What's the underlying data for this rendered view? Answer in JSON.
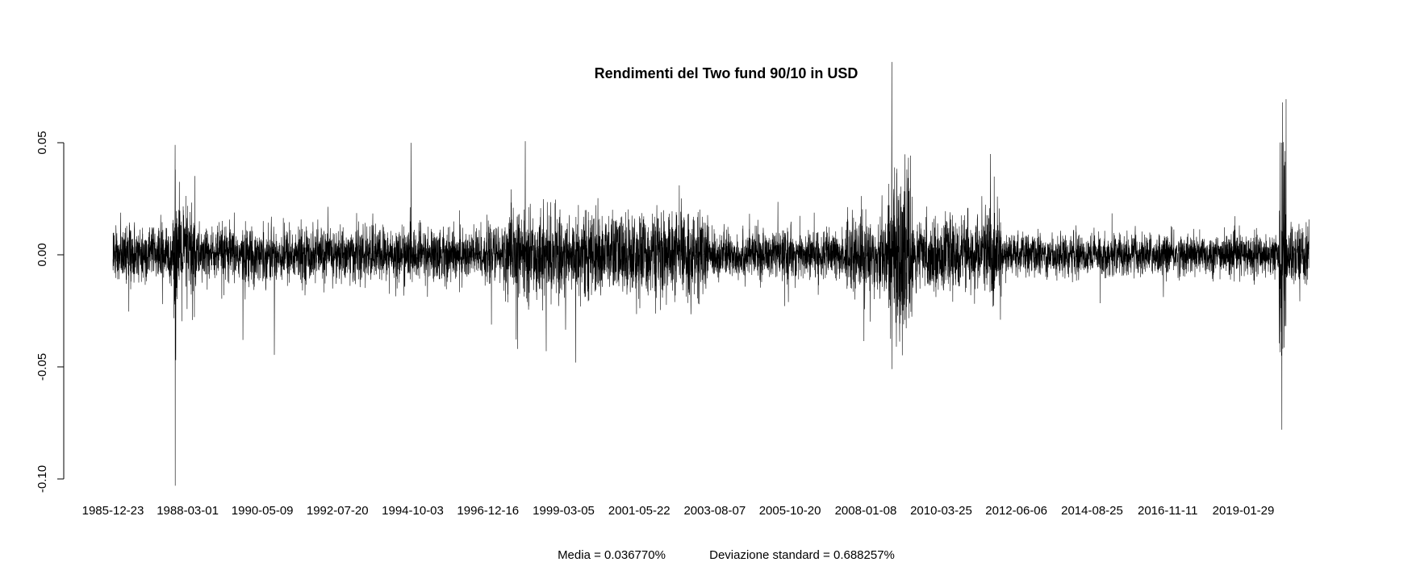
{
  "chart_data": {
    "type": "line",
    "title": "Rendimenti del Two fund 90/10 in USD",
    "xlabel": "",
    "ylabel": "",
    "x_range": [
      "1985-12-23",
      "2020-12-31"
    ],
    "ylim": [
      -0.1,
      0.086
    ],
    "y_ticks": [
      {
        "value": 0.05,
        "label": "0.05"
      },
      {
        "value": 0.0,
        "label": "0.00"
      },
      {
        "value": -0.05,
        "label": "-0.05"
      },
      {
        "value": -0.1,
        "label": "-0.10"
      }
    ],
    "x_ticks": [
      {
        "date": "1985-12-23",
        "label": "1985-12-23"
      },
      {
        "date": "1988-03-01",
        "label": "1988-03-01"
      },
      {
        "date": "1990-05-09",
        "label": "1990-05-09"
      },
      {
        "date": "1992-07-20",
        "label": "1992-07-20"
      },
      {
        "date": "1994-10-03",
        "label": "1994-10-03"
      },
      {
        "date": "1996-12-16",
        "label": "1996-12-16"
      },
      {
        "date": "1999-03-05",
        "label": "1999-03-05"
      },
      {
        "date": "2001-05-22",
        "label": "2001-05-22"
      },
      {
        "date": "2003-08-07",
        "label": "2003-08-07"
      },
      {
        "date": "2005-10-20",
        "label": "2005-10-20"
      },
      {
        "date": "2008-01-08",
        "label": "2008-01-08"
      },
      {
        "date": "2010-03-25",
        "label": "2010-03-25"
      },
      {
        "date": "2012-06-06",
        "label": "2012-06-06"
      },
      {
        "date": "2014-08-25",
        "label": "2014-08-25"
      },
      {
        "date": "2016-11-11",
        "label": "2016-11-11"
      },
      {
        "date": "2019-01-29",
        "label": "2019-01-29"
      }
    ],
    "series": [
      {
        "color": "#000000",
        "notable_points": [
          {
            "x": "1987-10-19",
            "y": 0.049
          },
          {
            "x": "1987-10-20",
            "y": -0.103
          },
          {
            "x": "1987-10-21",
            "y": 0.038
          },
          {
            "x": "1987-10-26",
            "y": -0.047
          },
          {
            "x": "1989-10-13",
            "y": -0.038
          },
          {
            "x": "1997-10-27",
            "y": -0.042
          },
          {
            "x": "1998-08-31",
            "y": -0.043
          },
          {
            "x": "2002-07-24",
            "y": 0.031
          },
          {
            "x": "2008-10-13",
            "y": 0.086
          },
          {
            "x": "2008-10-15",
            "y": -0.051
          },
          {
            "x": "2008-12-01",
            "y": -0.041
          },
          {
            "x": "2020-03-13",
            "y": 0.05
          },
          {
            "x": "2020-03-16",
            "y": -0.078
          },
          {
            "x": "2020-03-24",
            "y": 0.068
          },
          {
            "x": "2020-03-12",
            "y": -0.045
          }
        ],
        "volatility_profile": [
          {
            "from": "1985-12-23",
            "to": "1987-10-01",
            "typical_abs": 0.008
          },
          {
            "from": "1987-10-01",
            "to": "1988-06-01",
            "typical_abs": 0.016
          },
          {
            "from": "1988-06-01",
            "to": "1997-06-01",
            "typical_abs": 0.008
          },
          {
            "from": "1997-06-01",
            "to": "2003-06-01",
            "typical_abs": 0.012
          },
          {
            "from": "2003-06-01",
            "to": "2007-06-01",
            "typical_abs": 0.007
          },
          {
            "from": "2007-06-01",
            "to": "2008-09-01",
            "typical_abs": 0.011
          },
          {
            "from": "2008-09-01",
            "to": "2009-06-01",
            "typical_abs": 0.022
          },
          {
            "from": "2009-06-01",
            "to": "2011-06-01",
            "typical_abs": 0.01
          },
          {
            "from": "2011-06-01",
            "to": "2012-01-01",
            "typical_abs": 0.014
          },
          {
            "from": "2012-01-01",
            "to": "2020-02-15",
            "typical_abs": 0.006
          },
          {
            "from": "2020-02-15",
            "to": "2020-05-01",
            "typical_abs": 0.028
          },
          {
            "from": "2020-05-01",
            "to": "2020-12-31",
            "typical_abs": 0.009
          }
        ]
      }
    ],
    "grid": false,
    "legend": "none"
  },
  "stats": {
    "mean_label": "Media = 0.036770%",
    "std_label": "Deviazione standard = 0.688257%"
  }
}
